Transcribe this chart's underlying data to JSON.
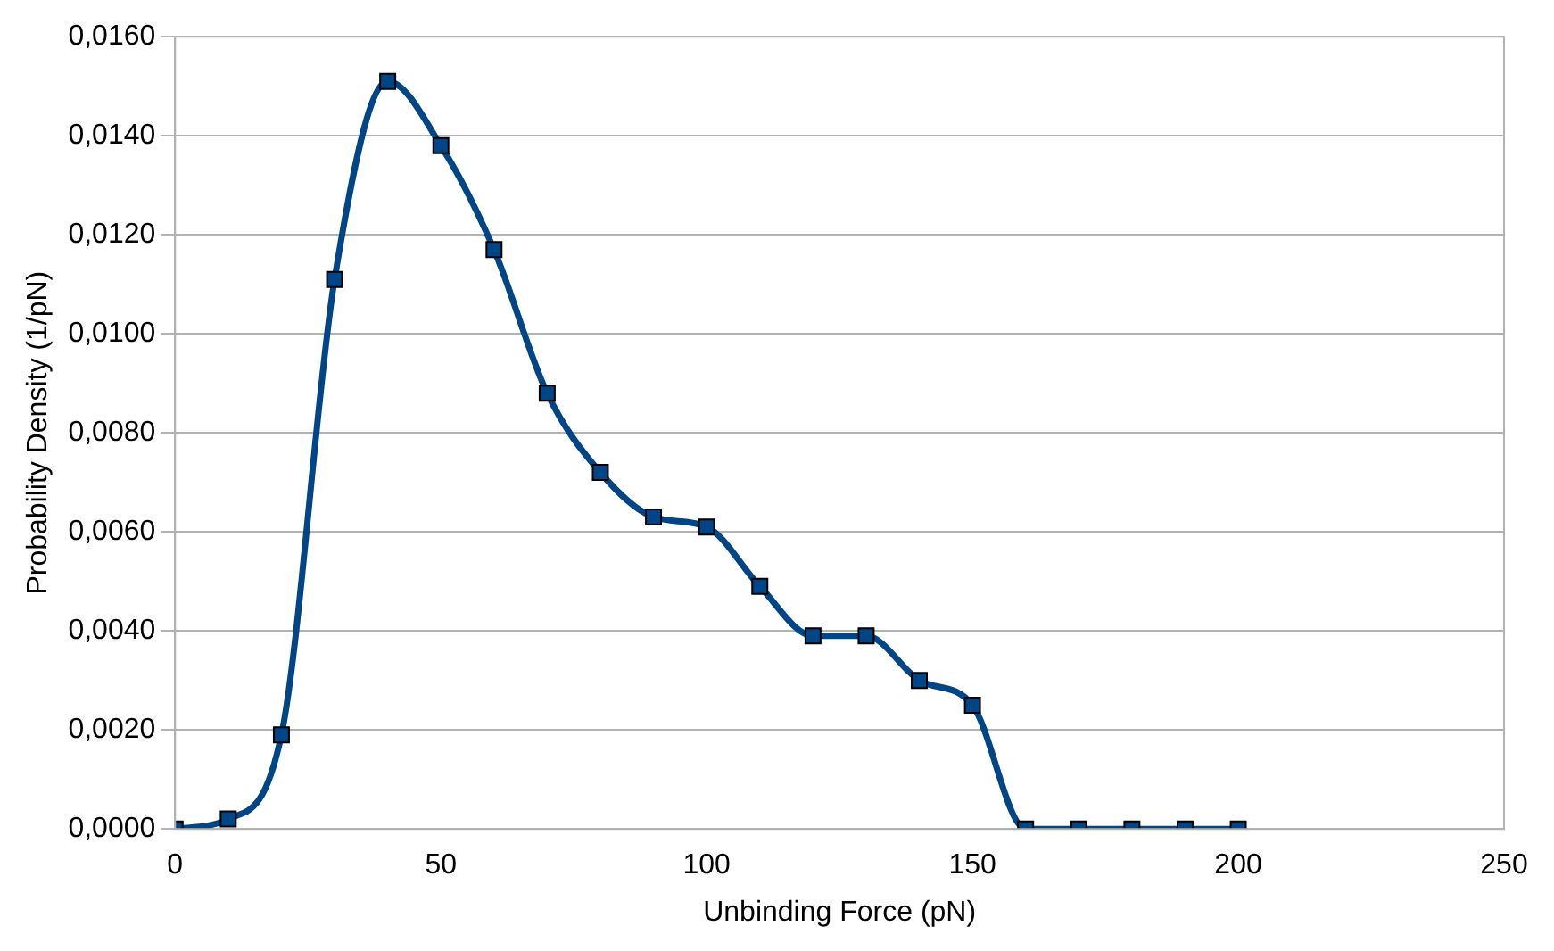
{
  "chart_data": {
    "type": "line",
    "xlabel": "Unbinding Force (pN)",
    "ylabel": "Probability Density (1/pN)",
    "x": [
      0,
      10,
      20,
      30,
      40,
      50,
      60,
      70,
      80,
      90,
      100,
      110,
      120,
      130,
      140,
      150,
      160,
      170,
      180,
      190,
      200
    ],
    "series": [
      {
        "color": "#004586",
        "values": [
          0,
          0.0002,
          0.0019,
          0.0111,
          0.0151,
          0.0138,
          0.0117,
          0.0088,
          0.0072,
          0.0063,
          0.0061,
          0.0049,
          0.0039,
          0.0039,
          0.003,
          0.0025,
          0,
          0,
          0,
          0,
          0
        ]
      }
    ],
    "xlim": [
      0,
      250
    ],
    "xticks": [
      0,
      50,
      100,
      150,
      200,
      250
    ],
    "ylim": [
      0,
      0.016
    ],
    "yticks": [
      {
        "value": 0,
        "label": "0,0000"
      },
      {
        "value": 0.002,
        "label": "0,0020"
      },
      {
        "value": 0.004,
        "label": "0,0040"
      },
      {
        "value": 0.006,
        "label": "0,0060"
      },
      {
        "value": 0.008,
        "label": "0,0080"
      },
      {
        "value": 0.01,
        "label": "0,0100"
      },
      {
        "value": 0.012,
        "label": "0,0120"
      },
      {
        "value": 0.014,
        "label": "0,0140"
      },
      {
        "value": 0.016,
        "label": "0,0160"
      }
    ],
    "grid": "y",
    "legend": false,
    "marker": "square",
    "line_style": "solid"
  }
}
